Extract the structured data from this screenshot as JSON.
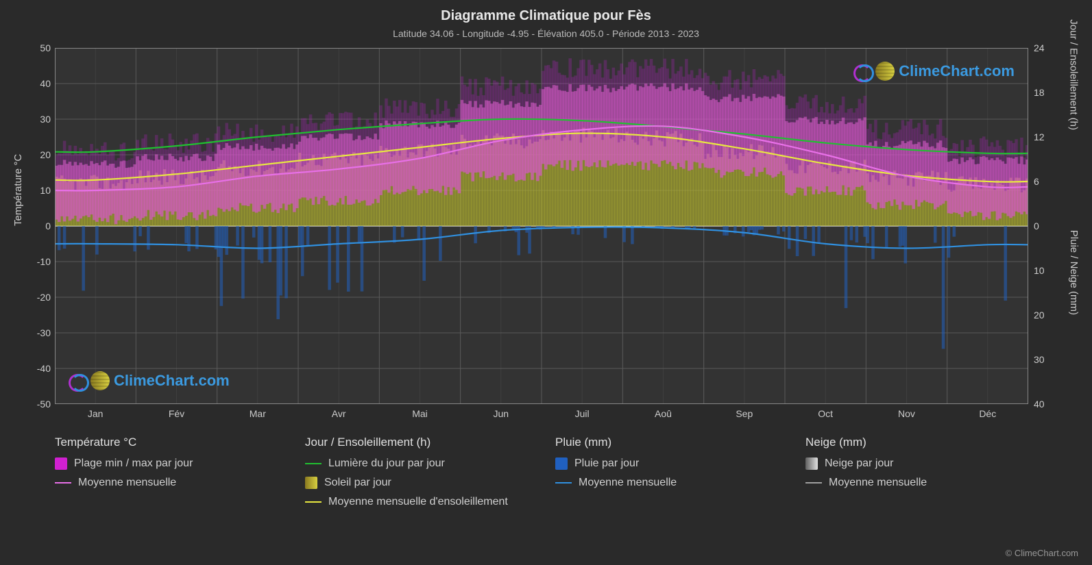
{
  "title": "Diagramme Climatique pour Fès",
  "subtitle": "Latitude 34.06 - Longitude -4.95 - Élévation 405.0 - Période 2013 - 2023",
  "watermark_text": "ClimeChart.com",
  "watermark_color": "#3b9ae0",
  "copyright": "© ClimeChart.com",
  "axes": {
    "y_left": {
      "label": "Température °C",
      "min": -50,
      "max": 50,
      "step": 10,
      "color": "#cccccc"
    },
    "y_right_top": {
      "label": "Jour / Ensoleillement (h)",
      "min": 0,
      "max": 24,
      "step": 6,
      "color": "#cccccc"
    },
    "y_right_bottom": {
      "label": "Pluie / Neige (mm)",
      "min": 0,
      "max": 40,
      "step": 10,
      "color": "#cccccc"
    },
    "x": {
      "labels": [
        "Jan",
        "Fév",
        "Mar",
        "Avr",
        "Mai",
        "Jun",
        "Juil",
        "Aoû",
        "Sep",
        "Oct",
        "Nov",
        "Déc"
      ]
    }
  },
  "plot": {
    "background": "#333333",
    "grid_color": "#5a5a5a",
    "grid_width": 1,
    "zero_line_color": "#888888"
  },
  "colors": {
    "temp_range": "#d020d0",
    "temp_range_fill_top": "#c020d0",
    "temp_range_fill_inner": "#e060d0",
    "temp_mean": "#e870e8",
    "daylight": "#20c030",
    "sunshine_fill": "#b0b030",
    "sunshine_mean": "#e8e840",
    "rain_fill": "#2060c0",
    "rain_mean": "#3090e0",
    "snow_fill": "#c0c0c0",
    "snow_mean": "#a0a0a0"
  },
  "series": {
    "months": [
      "Jan",
      "Fév",
      "Mar",
      "Avr",
      "Mai",
      "Jun",
      "Juil",
      "Aoû",
      "Sep",
      "Oct",
      "Nov",
      "Déc"
    ],
    "temp_max_daily_peak": [
      20,
      22,
      25,
      28,
      32,
      38,
      43,
      43,
      40,
      33,
      26,
      21
    ],
    "temp_min_daily_low": [
      2,
      3,
      5,
      7,
      10,
      14,
      17,
      17,
      15,
      10,
      6,
      3
    ],
    "temp_mean": [
      10,
      11,
      14,
      16,
      19,
      24,
      27,
      28,
      25,
      20,
      14,
      11
    ],
    "daylight_h": [
      10.0,
      10.8,
      12.0,
      13.0,
      13.8,
      14.4,
      14.2,
      13.4,
      12.4,
      11.2,
      10.3,
      9.8
    ],
    "sunshine_h": [
      5.8,
      6.6,
      7.8,
      9.0,
      10.2,
      11.5,
      12.2,
      11.8,
      10.0,
      8.0,
      6.4,
      5.6
    ],
    "sunshine_mean_h": [
      6.2,
      7.0,
      8.2,
      9.4,
      10.6,
      11.8,
      12.5,
      12.0,
      10.4,
      8.4,
      6.8,
      6.0
    ],
    "rain_mean_mm": [
      4.0,
      4.2,
      5.0,
      4.0,
      3.0,
      1.0,
      0.3,
      0.4,
      1.5,
      4.0,
      5.0,
      4.2
    ],
    "rain_daily_max_mm": [
      18,
      16,
      20,
      15,
      12,
      6,
      3,
      4,
      10,
      22,
      26,
      20
    ],
    "snow_mean_mm": [
      0,
      0,
      0,
      0,
      0,
      0,
      0,
      0,
      0,
      0,
      0,
      0
    ]
  },
  "legend": {
    "groups": [
      {
        "head": "Température °C",
        "items": [
          {
            "type": "square",
            "color": "#d020d0",
            "label": "Plage min / max par jour"
          },
          {
            "type": "line",
            "color": "#e870e8",
            "label": "Moyenne mensuelle"
          }
        ]
      },
      {
        "head": "Jour / Ensoleillement (h)",
        "items": [
          {
            "type": "line",
            "color": "#20c030",
            "label": "Lumière du jour par jour"
          },
          {
            "type": "grad",
            "from": "#8a7a20",
            "to": "#d8d040",
            "label": "Soleil par jour"
          },
          {
            "type": "line",
            "color": "#e8e840",
            "label": "Moyenne mensuelle d'ensoleillement"
          }
        ]
      },
      {
        "head": "Pluie (mm)",
        "items": [
          {
            "type": "square",
            "color": "#2060c0",
            "label": "Pluie par jour"
          },
          {
            "type": "line",
            "color": "#3090e0",
            "label": "Moyenne mensuelle"
          }
        ]
      },
      {
        "head": "Neige (mm)",
        "items": [
          {
            "type": "grad",
            "from": "#606060",
            "to": "#e0e0e0",
            "label": "Neige par jour"
          },
          {
            "type": "line",
            "color": "#a0a0a0",
            "label": "Moyenne mensuelle"
          }
        ]
      }
    ]
  }
}
